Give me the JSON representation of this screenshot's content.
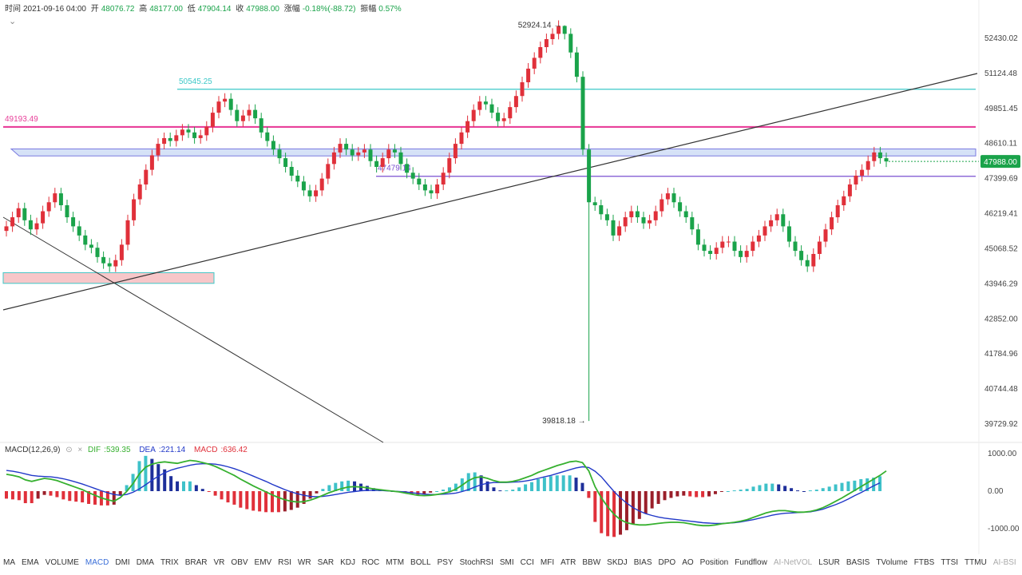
{
  "ohlc": {
    "time_label": "时间",
    "time": "2021-09-16 04:00",
    "open_label": "开",
    "open": "48076.72",
    "high_label": "高",
    "high": "48177.00",
    "low_label": "低",
    "low": "47904.14",
    "close_label": "收",
    "close": "47988.00",
    "change_label": "涨幅",
    "change": "-0.18%(-88.72)",
    "amplitude_label": "振幅",
    "amplitude": "0.57%"
  },
  "collapse_glyph": "⌄",
  "chart_data": {
    "type": "candlestick",
    "y_axis_ticks": [
      52430.02,
      51124.48,
      49851.45,
      48610.11,
      47399.69,
      46219.41,
      45068.52,
      43946.29,
      42852.0,
      41784.96,
      40744.48,
      39729.92
    ],
    "y_axis_tick_labels": [
      "52430.02",
      "51124.48",
      "49851.45",
      "48610.11",
      "47399.69",
      "46219.41",
      "45068.52",
      "43946.29",
      "42852.00",
      "41784.96",
      "40744.48",
      "39729.92"
    ],
    "y_scale": "log",
    "current_price": 47988.0,
    "current_price_label": "47988.00",
    "annotations": [
      {
        "text": "52924.14",
        "value": 52924.14,
        "type": "high"
      },
      {
        "text": "39818.18",
        "value": 39818.18,
        "type": "low"
      }
    ],
    "horizontal_lines": [
      {
        "text": "50545.25",
        "value": 50545.25,
        "color": "#3cc8c8"
      },
      {
        "text": "49193.49",
        "value": 49193.49,
        "color": "#e8409a"
      },
      {
        "text": "47479.14",
        "value": 47479.14,
        "color": "#7a4fd0"
      }
    ],
    "close_series": [
      45800,
      46100,
      46400,
      46000,
      45700,
      45900,
      46300,
      46600,
      46900,
      46500,
      46100,
      45800,
      45500,
      45200,
      45100,
      44800,
      44600,
      44500,
      44700,
      45200,
      46000,
      46700,
      47200,
      47700,
      48200,
      48600,
      48800,
      48700,
      48900,
      49100,
      49000,
      48800,
      48900,
      49200,
      49700,
      50100,
      50200,
      49800,
      49400,
      49600,
      49800,
      49500,
      49000,
      48700,
      48400,
      48100,
      47800,
      47500,
      47300,
      47000,
      46800,
      47000,
      47400,
      47900,
      48300,
      48600,
      48400,
      48200,
      48300,
      48400,
      48000,
      47800,
      48100,
      48400,
      48300,
      47900,
      47600,
      47400,
      47200,
      47000,
      46900,
      47200,
      47600,
      48100,
      48600,
      49000,
      49400,
      49800,
      50100,
      50000,
      49700,
      49400,
      49500,
      49900,
      50300,
      50800,
      51300,
      51700,
      52100,
      52400,
      52600,
      52900,
      52600,
      51900,
      51000,
      48400,
      46600,
      46500,
      46200,
      46000,
      45500,
      45800,
      46100,
      46300,
      46100,
      45900,
      46000,
      46300,
      46700,
      46900,
      46600,
      46300,
      46100,
      45700,
      45200,
      45000,
      44900,
      45100,
      45300,
      45300,
      45000,
      44800,
      45000,
      45300,
      45500,
      45800,
      46000,
      46200,
      45800,
      45300,
      45000,
      44700,
      44500,
      44900,
      45300,
      45700,
      46100,
      46500,
      46800,
      47200,
      47500,
      47700,
      48000,
      48300,
      48100,
      47988
    ],
    "macd": {
      "params": "MACD(12,26,9)",
      "dif_label": "DIF",
      "dif": 539.35,
      "dea_label": "DEA",
      "dea": 221.14,
      "macd_label": "MACD",
      "macd": 636.42,
      "y_axis_ticks": [
        1000.0,
        0.0,
        -1000.0
      ],
      "y_axis_tick_labels": [
        "1000.00",
        "0.00",
        "-1000.00"
      ],
      "dif_series": [
        450,
        420,
        380,
        300,
        260,
        300,
        340,
        320,
        280,
        220,
        160,
        100,
        40,
        -40,
        -110,
        -180,
        -230,
        -270,
        -170,
        -10,
        200,
        460,
        640,
        720,
        760,
        780,
        760,
        740,
        780,
        820,
        800,
        760,
        720,
        660,
        580,
        500,
        420,
        320,
        230,
        140,
        60,
        -20,
        -100,
        -170,
        -230,
        -270,
        -290,
        -280,
        -240,
        -180,
        -110,
        -40,
        20,
        70,
        110,
        120,
        110,
        90,
        60,
        40,
        20,
        0,
        -20,
        -50,
        -80,
        -110,
        -120,
        -110,
        -90,
        -60,
        -20,
        50,
        160,
        280,
        360,
        380,
        340,
        280,
        240,
        240,
        260,
        300,
        360,
        420,
        500,
        560,
        620,
        680,
        730,
        780,
        800,
        760,
        540,
        120,
        -180,
        -420,
        -620,
        -760,
        -840,
        -880,
        -900,
        -900,
        -880,
        -860,
        -840,
        -830,
        -830,
        -840,
        -870,
        -900,
        -920,
        -920,
        -900,
        -870,
        -850,
        -830,
        -800,
        -760,
        -700,
        -640,
        -580,
        -540,
        -520,
        -520,
        -540,
        -560,
        -560,
        -540,
        -500,
        -440,
        -360,
        -270,
        -180,
        -80,
        20,
        120,
        220,
        320,
        420,
        539
      ],
      "dea_series": [
        550,
        530,
        500,
        460,
        420,
        400,
        390,
        380,
        360,
        330,
        290,
        240,
        190,
        130,
        70,
        10,
        -40,
        -90,
        -110,
        -90,
        -30,
        60,
        170,
        290,
        400,
        490,
        560,
        610,
        650,
        690,
        720,
        730,
        730,
        720,
        690,
        650,
        600,
        540,
        470,
        400,
        330,
        260,
        180,
        110,
        40,
        -20,
        -70,
        -110,
        -140,
        -150,
        -140,
        -120,
        -90,
        -60,
        -30,
        -10,
        10,
        20,
        20,
        20,
        10,
        0,
        -10,
        -20,
        -40,
        -60,
        -80,
        -90,
        -90,
        -80,
        -70,
        -50,
        -10,
        40,
        110,
        170,
        210,
        230,
        230,
        230,
        240,
        250,
        270,
        300,
        340,
        380,
        420,
        470,
        520,
        570,
        620,
        650,
        630,
        530,
        380,
        180,
        -10,
        -180,
        -320,
        -440,
        -530,
        -600,
        -650,
        -690,
        -720,
        -740,
        -760,
        -780,
        -800,
        -820,
        -840,
        -850,
        -860,
        -860,
        -850,
        -840,
        -820,
        -790,
        -760,
        -720,
        -680,
        -640,
        -610,
        -590,
        -580,
        -570,
        -560,
        -550,
        -520,
        -480,
        -420,
        -360,
        -290,
        -210,
        -120,
        -40,
        50,
        140,
        221
      ]
    }
  },
  "indicator_tabs": [
    {
      "label": "MA",
      "state": "normal"
    },
    {
      "label": "EMA",
      "state": "normal"
    },
    {
      "label": "VOLUME",
      "state": "normal"
    },
    {
      "label": "MACD",
      "state": "active"
    },
    {
      "label": "DMI",
      "state": "normal"
    },
    {
      "label": "DMA",
      "state": "normal"
    },
    {
      "label": "TRIX",
      "state": "normal"
    },
    {
      "label": "BRAR",
      "state": "normal"
    },
    {
      "label": "VR",
      "state": "normal"
    },
    {
      "label": "OBV",
      "state": "normal"
    },
    {
      "label": "EMV",
      "state": "normal"
    },
    {
      "label": "RSI",
      "state": "normal"
    },
    {
      "label": "WR",
      "state": "normal"
    },
    {
      "label": "SAR",
      "state": "normal"
    },
    {
      "label": "KDJ",
      "state": "normal"
    },
    {
      "label": "ROC",
      "state": "normal"
    },
    {
      "label": "MTM",
      "state": "normal"
    },
    {
      "label": "BOLL",
      "state": "normal"
    },
    {
      "label": "PSY",
      "state": "normal"
    },
    {
      "label": "StochRSI",
      "state": "normal"
    },
    {
      "label": "SMI",
      "state": "normal"
    },
    {
      "label": "CCI",
      "state": "normal"
    },
    {
      "label": "MFI",
      "state": "normal"
    },
    {
      "label": "ATR",
      "state": "normal"
    },
    {
      "label": "BBW",
      "state": "normal"
    },
    {
      "label": "SKDJ",
      "state": "normal"
    },
    {
      "label": "BIAS",
      "state": "normal"
    },
    {
      "label": "DPO",
      "state": "normal"
    },
    {
      "label": "AO",
      "state": "normal"
    },
    {
      "label": "Position",
      "state": "normal"
    },
    {
      "label": "Fundflow",
      "state": "normal"
    },
    {
      "label": "AI-NetVOL",
      "state": "dim"
    },
    {
      "label": "LSUR",
      "state": "normal"
    },
    {
      "label": "BASIS",
      "state": "normal"
    },
    {
      "label": "TVolume",
      "state": "normal"
    },
    {
      "label": "FTBS",
      "state": "normal"
    },
    {
      "label": "TTSI",
      "state": "normal"
    },
    {
      "label": "TTMU",
      "state": "normal"
    },
    {
      "label": "AI-BSI",
      "state": "dim"
    }
  ],
  "colors": {
    "up": "#e0303a",
    "down": "#1aa34a",
    "macd_pos_strong": "#3ec1c9",
    "macd_pos_weak": "#1e2f9a",
    "macd_neg_strong": "#e0303a",
    "macd_neg_weak": "#9a1f2a",
    "dif_line": "#36b02f",
    "dea_line": "#2138c8",
    "price_tag": "#1aa34a"
  }
}
